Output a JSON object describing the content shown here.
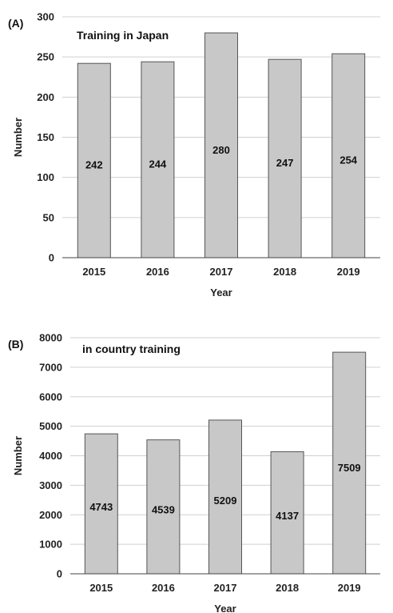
{
  "chart_data": [
    {
      "type": "bar",
      "panel_label": "(A)",
      "title": "Training in Japan",
      "xlabel": "Year",
      "ylabel": "Number",
      "categories": [
        "2015",
        "2016",
        "2017",
        "2018",
        "2019"
      ],
      "values": [
        242,
        244,
        280,
        247,
        254
      ],
      "data_labels": [
        "242",
        "244",
        "280",
        "247",
        "254"
      ],
      "ylim": [
        0,
        300
      ],
      "yticks": [
        "0",
        "50",
        "100",
        "150",
        "200",
        "250",
        "300"
      ],
      "grid": true,
      "bar_color": "#c8c8c8"
    },
    {
      "type": "bar",
      "panel_label": "(B)",
      "title": "in country training",
      "xlabel": "Year",
      "ylabel": "Number",
      "categories": [
        "2015",
        "2016",
        "2017",
        "2018",
        "2019"
      ],
      "values": [
        4743,
        4539,
        5209,
        4137,
        7509
      ],
      "data_labels": [
        "4743",
        "4539",
        "5209",
        "4137",
        "7509"
      ],
      "ylim": [
        0,
        8000
      ],
      "yticks": [
        "0",
        "1000",
        "2000",
        "3000",
        "4000",
        "5000",
        "6000",
        "7000",
        "8000"
      ],
      "grid": true,
      "bar_color": "#c8c8c8"
    }
  ]
}
